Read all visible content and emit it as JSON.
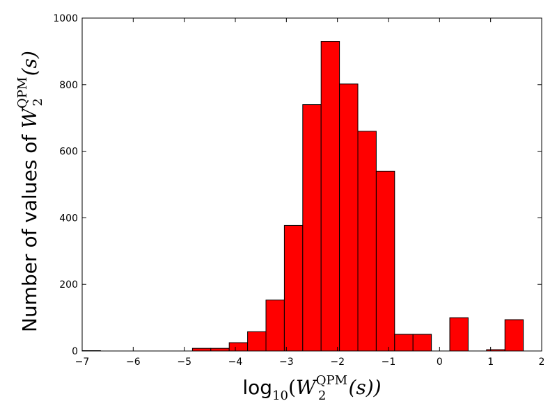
{
  "chart_data": {
    "type": "bar",
    "title": "",
    "xlabel": {
      "prefix": "log",
      "sub": "10",
      "open": "(",
      "var": "W",
      "var_sub": "2",
      "var_sup": "QPM",
      "arg": "(s))"
    },
    "ylabel": {
      "text": "Number of values of ",
      "var": "W",
      "var_sub": "2",
      "var_sup": "QPM",
      "arg": "(s)"
    },
    "xlim": [
      -7,
      2
    ],
    "ylim": [
      0,
      1000
    ],
    "xticks": [
      -7,
      -6,
      -5,
      -4,
      -3,
      -2,
      -1,
      0,
      1,
      2
    ],
    "xtick_labels": [
      "−7",
      "−6",
      "−5",
      "−4",
      "−3",
      "−2",
      "−1",
      "0",
      "1",
      "2"
    ],
    "yticks": [
      0,
      200,
      400,
      600,
      800,
      1000
    ],
    "ytick_labels": [
      "0",
      "200",
      "400",
      "600",
      "800",
      "1000"
    ],
    "bar_color": "#ff0000",
    "edge_color": "#000000",
    "grid": false,
    "bins": [
      {
        "x0": -7.0,
        "x1": -6.64,
        "value": 1
      },
      {
        "x0": -4.84,
        "x1": -4.48,
        "value": 8
      },
      {
        "x0": -4.48,
        "x1": -4.12,
        "value": 8
      },
      {
        "x0": -4.12,
        "x1": -3.76,
        "value": 25
      },
      {
        "x0": -3.76,
        "x1": -3.4,
        "value": 58
      },
      {
        "x0": -3.4,
        "x1": -3.04,
        "value": 153
      },
      {
        "x0": -3.04,
        "x1": -2.68,
        "value": 377
      },
      {
        "x0": -2.68,
        "x1": -2.32,
        "value": 740
      },
      {
        "x0": -2.32,
        "x1": -1.96,
        "value": 930
      },
      {
        "x0": -1.96,
        "x1": -1.6,
        "value": 802
      },
      {
        "x0": -1.6,
        "x1": -1.24,
        "value": 660
      },
      {
        "x0": -1.24,
        "x1": -0.88,
        "value": 540
      },
      {
        "x0": -0.88,
        "x1": -0.52,
        "value": 50
      },
      {
        "x0": -0.52,
        "x1": -0.16,
        "value": 50
      },
      {
        "x0": 0.2,
        "x1": 0.56,
        "value": 100
      },
      {
        "x0": 0.92,
        "x1": 1.28,
        "value": 4
      },
      {
        "x0": 1.28,
        "x1": 1.64,
        "value": 94
      }
    ]
  }
}
